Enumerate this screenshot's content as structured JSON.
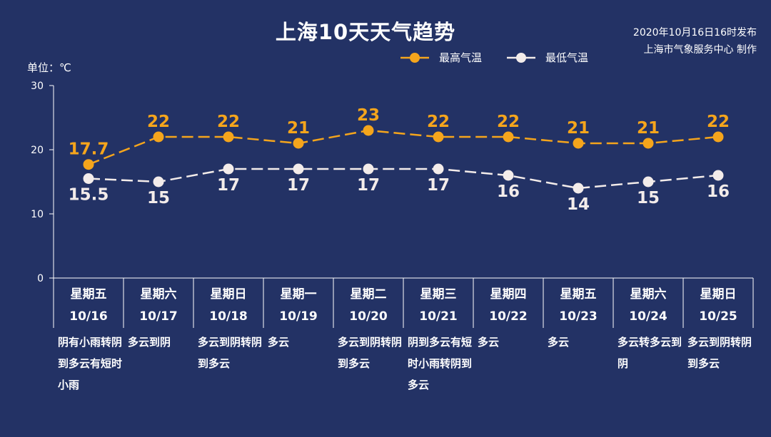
{
  "title": "上海10天天气趋势",
  "publish": {
    "line1": "2020年10月16日16时发布",
    "line2": "上海市气象服务中心 制作"
  },
  "unit_label": "单位：℃",
  "colors": {
    "background": "#233265",
    "high": "#f5a51c",
    "low": "#f3ecea",
    "axis": "#ffffff"
  },
  "chart_data": {
    "type": "line",
    "categories": [
      "10/16",
      "10/17",
      "10/18",
      "10/19",
      "10/20",
      "10/21",
      "10/22",
      "10/23",
      "10/24",
      "10/25"
    ],
    "weekdays": [
      "星期五",
      "星期六",
      "星期日",
      "星期一",
      "星期二",
      "星期三",
      "星期四",
      "星期五",
      "星期六",
      "星期日"
    ],
    "descriptions": [
      "阴有小雨转阴到多云有短时小雨",
      "多云到阴",
      "多云到阴转阴到多云",
      "多云",
      "多云到阴转阴到多云",
      "阴到多云有短时小雨转阴到多云",
      "多云",
      "多云",
      "多云转多云到阴",
      "多云到阴转阴到多云"
    ],
    "series": [
      {
        "name": "最高气温",
        "values": [
          17.7,
          22,
          22,
          21,
          23,
          22,
          22,
          21,
          21,
          22
        ],
        "labels": [
          "17.7",
          "22",
          "22",
          "21",
          "23",
          "22",
          "22",
          "21",
          "21",
          "22"
        ]
      },
      {
        "name": "最低气温",
        "values": [
          15.5,
          15,
          17,
          17,
          17,
          17,
          16,
          14,
          15,
          16
        ],
        "labels": [
          "15.5",
          "15",
          "17",
          "17",
          "17",
          "17",
          "16",
          "14",
          "15",
          "16"
        ]
      }
    ],
    "ylim": [
      0,
      30
    ],
    "yticks": [
      "0",
      "10",
      "20",
      "30"
    ],
    "grid": false,
    "legend": "top-center"
  }
}
